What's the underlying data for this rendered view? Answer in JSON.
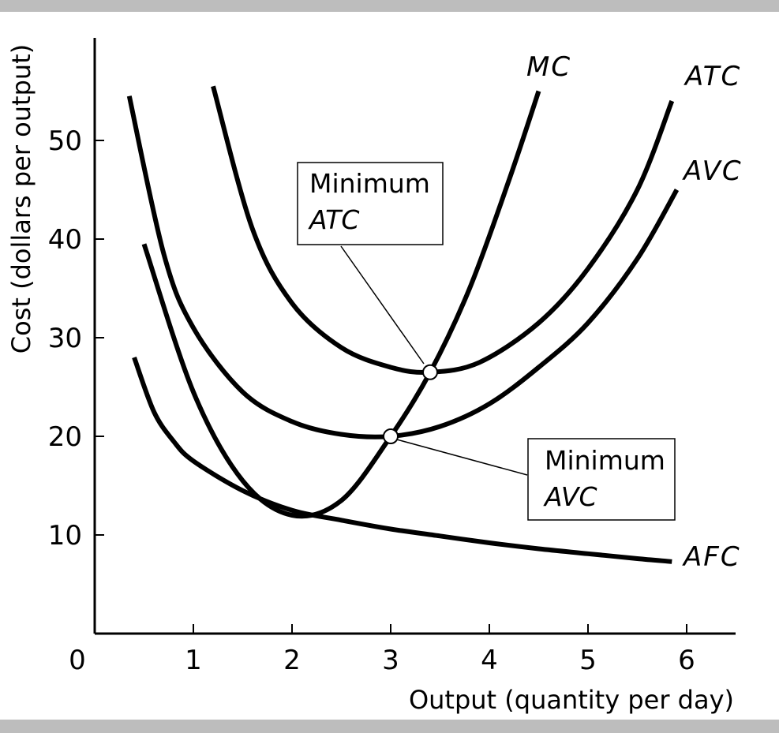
{
  "chart_data": {
    "type": "line",
    "xlabel": "Output (quantity per day)",
    "ylabel": "Cost (dollars per output)",
    "xlim": [
      0,
      6.5
    ],
    "ylim": [
      0,
      60
    ],
    "x_ticks": [
      1,
      2,
      3,
      4,
      5,
      6
    ],
    "y_ticks": [
      10,
      20,
      30,
      40,
      50
    ],
    "origin_label": "0",
    "x_tick_labels": [
      "1",
      "2",
      "3",
      "4",
      "5",
      "6"
    ],
    "y_tick_labels": [
      "10",
      "20",
      "30",
      "40",
      "50"
    ],
    "series": [
      {
        "name": "MC",
        "x": [
          0.5,
          1.0,
          1.5,
          2.0,
          2.5,
          3.0,
          3.4,
          3.8,
          4.2,
          4.5
        ],
        "y": [
          39.5,
          24.5,
          15.5,
          12.0,
          13.5,
          20.0,
          26.5,
          35.0,
          46.0,
          55.0
        ]
      },
      {
        "name": "ATC",
        "x": [
          1.2,
          1.6,
          2.0,
          2.5,
          3.0,
          3.4,
          3.9,
          4.5,
          5.0,
          5.5,
          5.85
        ],
        "y": [
          55.5,
          41.0,
          33.5,
          29.0,
          27.0,
          26.5,
          27.5,
          31.5,
          37.0,
          45.0,
          54.0
        ]
      },
      {
        "name": "AVC",
        "x": [
          0.35,
          0.7,
          1.0,
          1.5,
          2.0,
          2.5,
          3.0,
          3.5,
          4.0,
          4.5,
          5.0,
          5.5,
          5.9
        ],
        "y": [
          54.5,
          38.5,
          31.0,
          24.5,
          21.5,
          20.2,
          20.0,
          21.0,
          23.3,
          27.0,
          31.5,
          38.0,
          45.0
        ]
      },
      {
        "name": "AFC",
        "x": [
          0.4,
          0.6,
          0.8,
          1.0,
          1.5,
          2.0,
          2.5,
          3.0,
          3.5,
          4.0,
          4.5,
          5.0,
          5.5,
          5.85
        ],
        "y": [
          28.0,
          22.5,
          19.5,
          17.5,
          14.5,
          12.5,
          11.5,
          10.6,
          9.9,
          9.2,
          8.6,
          8.1,
          7.6,
          7.3
        ]
      }
    ],
    "points": [
      {
        "name": "Minimum ATC",
        "x": 3.4,
        "y": 26.5
      },
      {
        "name": "Minimum AVC",
        "x": 3.0,
        "y": 20.0
      }
    ],
    "annotations": [
      {
        "line1": "Minimum",
        "line2": "ATC",
        "target": "Minimum ATC"
      },
      {
        "line1": "Minimum",
        "line2": "AVC",
        "target": "Minimum AVC"
      }
    ],
    "legend": "curve labels at line ends"
  }
}
